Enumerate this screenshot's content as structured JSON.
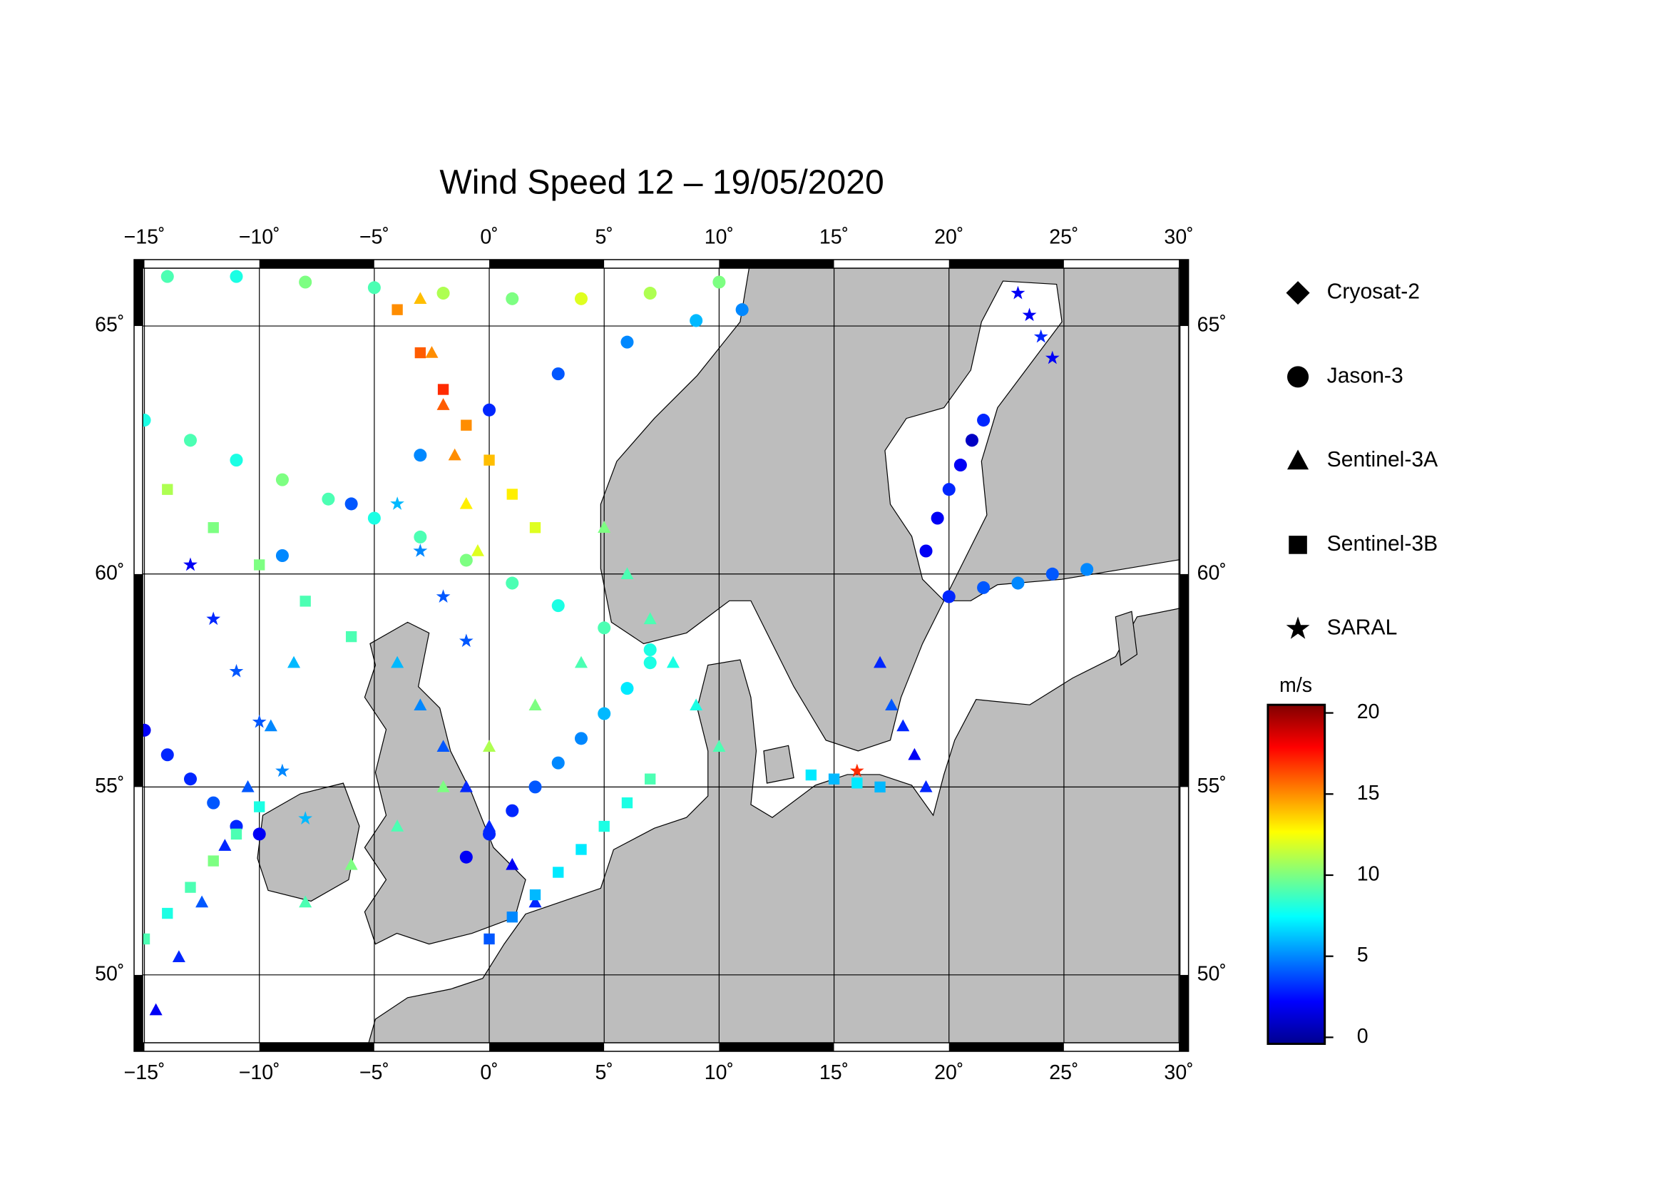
{
  "chart_data": {
    "type": "map",
    "title": "Wind Speed 12 – 19/05/2020",
    "xlim": [
      -15.45,
      30.42
    ],
    "ylim": [
      47.8,
      66.2
    ],
    "projection": "mercator",
    "grid": true,
    "xticks": [
      {
        "value": -15,
        "label": "−15˚"
      },
      {
        "value": -10,
        "label": "−10˚"
      },
      {
        "value": -5,
        "label": "−5˚"
      },
      {
        "value": 0,
        "label": "0˚"
      },
      {
        "value": 5,
        "label": "5˚"
      },
      {
        "value": 10,
        "label": "10˚"
      },
      {
        "value": 15,
        "label": "15˚"
      },
      {
        "value": 20,
        "label": "20˚"
      },
      {
        "value": 25,
        "label": "25˚"
      },
      {
        "value": 30,
        "label": "30˚"
      }
    ],
    "yticks": [
      {
        "value": 50,
        "label": "50˚"
      },
      {
        "value": 55,
        "label": "55˚"
      },
      {
        "value": 60,
        "label": "60˚"
      },
      {
        "value": 65,
        "label": "65˚"
      }
    ],
    "colorbar": {
      "label": "m/s",
      "colormap": "jet",
      "lim": [
        -0.4,
        20.5
      ],
      "ticks": [
        0,
        5,
        10,
        15,
        20
      ]
    },
    "series": [
      {
        "name": "Cryosat-2",
        "marker": "diamond",
        "tracks": []
      },
      {
        "name": "Jason-3",
        "marker": "circle",
        "tracks": [
          {
            "lon": [
              -14,
              -11,
              -8,
              -5,
              -2,
              1,
              4,
              7,
              10
            ],
            "lat": [
              65.9,
              65.9,
              65.8,
              65.7,
              65.6,
              65.5,
              65.5,
              65.6,
              65.8
            ],
            "values": [
              9,
              8,
              10,
              9,
              11,
              10,
              12,
              11,
              10
            ]
          },
          {
            "lon": [
              -15,
              -13,
              -11,
              -9,
              -7,
              -5,
              -3,
              -1,
              1,
              3,
              5,
              7
            ],
            "lat": [
              63.2,
              62.8,
              62.4,
              62.0,
              61.6,
              61.2,
              60.8,
              60.3,
              59.8,
              59.3,
              58.8,
              58.3
            ],
            "values": [
              8,
              9,
              8,
              10,
              9,
              8,
              9,
              10,
              9,
              8,
              9,
              8
            ]
          },
          {
            "lon": [
              -9,
              -6,
              -3,
              0,
              3,
              6,
              9,
              11
            ],
            "lat": [
              60.4,
              61.5,
              62.5,
              63.4,
              64.1,
              64.7,
              65.1,
              65.3
            ],
            "values": [
              5,
              4,
              5,
              3,
              4,
              5,
              6,
              5
            ]
          },
          {
            "lon": [
              -15,
              -14,
              -13,
              -12,
              -11,
              -10
            ],
            "lat": [
              56.4,
              55.8,
              55.2,
              54.6,
              54.0,
              53.8
            ],
            "values": [
              2,
              3,
              3,
              4,
              3,
              2
            ]
          },
          {
            "lon": [
              19,
              19.5,
              20,
              20.5,
              21,
              21.5
            ],
            "lat": [
              60.5,
              61.2,
              61.8,
              62.3,
              62.8,
              63.2
            ],
            "values": [
              2,
              2,
              3,
              2,
              1,
              3
            ]
          },
          {
            "lon": [
              20,
              21.5,
              23,
              24.5,
              26
            ],
            "lat": [
              59.5,
              59.7,
              59.8,
              60,
              60.1
            ],
            "values": [
              3,
              4,
              5,
              4,
              5
            ]
          },
          {
            "lon": [
              -1,
              0,
              1,
              2,
              3,
              4,
              5,
              6,
              7
            ],
            "lat": [
              53.2,
              53.8,
              54.4,
              55,
              55.6,
              56.2,
              56.8,
              57.4,
              58
            ],
            "values": [
              2,
              3,
              3,
              4,
              5,
              5,
              6,
              7,
              8
            ]
          }
        ]
      },
      {
        "name": "Sentinel-3A",
        "marker": "triangle",
        "tracks": [
          {
            "lon": [
              -14.5,
              -13.5,
              -12.5,
              -11.5,
              -10.5,
              -9.5,
              -8.5
            ],
            "lat": [
              49,
              50.5,
              52,
              53.5,
              55,
              56.5,
              58
            ],
            "values": [
              2,
              3,
              4,
              3,
              4,
              5,
              6
            ]
          },
          {
            "lon": [
              -3,
              -2.5,
              -2,
              -1.5,
              -1,
              -0.5
            ],
            "lat": [
              65.5,
              64.5,
              63.5,
              62.5,
              61.5,
              60.5
            ],
            "values": [
              14,
              15,
              16,
              15,
              13,
              12
            ]
          },
          {
            "lon": [
              -4,
              -3,
              -2,
              -1,
              0,
              1,
              2
            ],
            "lat": [
              58,
              57,
              56,
              55,
              54,
              53,
              52
            ],
            "values": [
              6,
              5,
              4,
              3,
              3,
              2,
              3
            ]
          },
          {
            "lon": [
              5,
              6,
              7,
              8,
              9,
              10
            ],
            "lat": [
              61,
              60,
              59,
              58,
              57,
              56
            ],
            "values": [
              10,
              9,
              9,
              8,
              8,
              9
            ]
          },
          {
            "lon": [
              17,
              17.5,
              18,
              18.5,
              19
            ],
            "lat": [
              58,
              57,
              56.5,
              55.8,
              55
            ],
            "values": [
              3,
              4,
              3,
              2,
              3
            ]
          },
          {
            "lon": [
              -8,
              -6,
              -4,
              -2,
              0,
              2,
              4
            ],
            "lat": [
              52,
              53,
              54,
              55,
              56,
              57,
              58
            ],
            "values": [
              9,
              10,
              9,
              10,
              11,
              10,
              9
            ]
          }
        ]
      },
      {
        "name": "Sentinel-3B",
        "marker": "square",
        "tracks": [
          {
            "lon": [
              -15,
              -14,
              -13,
              -12,
              -11,
              -10
            ],
            "lat": [
              51,
              51.7,
              52.4,
              53.1,
              53.8,
              54.5
            ],
            "values": [
              9,
              8,
              9,
              10,
              9,
              8
            ]
          },
          {
            "lon": [
              -4,
              -3,
              -2,
              -1,
              0,
              1,
              2
            ],
            "lat": [
              65.3,
              64.5,
              63.8,
              63.1,
              62.4,
              61.7,
              61
            ],
            "values": [
              15,
              16,
              17,
              15,
              14,
              13,
              12
            ]
          },
          {
            "lon": [
              0,
              1,
              2,
              3,
              4,
              5,
              6,
              7
            ],
            "lat": [
              51,
              51.6,
              52.2,
              52.8,
              53.4,
              54,
              54.6,
              55.2
            ],
            "values": [
              4,
              5,
              6,
              7,
              7,
              8,
              8,
              9
            ]
          },
          {
            "lon": [
              14,
              15,
              16,
              17
            ],
            "lat": [
              55.3,
              55.2,
              55.1,
              55
            ],
            "values": [
              7,
              6,
              7,
              6
            ]
          },
          {
            "lon": [
              -14,
              -12,
              -10,
              -8,
              -6
            ],
            "lat": [
              61.8,
              61,
              60.2,
              59.4,
              58.6
            ],
            "values": [
              11,
              10,
              10,
              9,
              9
            ]
          }
        ]
      },
      {
        "name": "SARAL",
        "marker": "star",
        "tracks": [
          {
            "lon": [
              -13,
              -12,
              -11,
              -10,
              -9,
              -8
            ],
            "lat": [
              60.2,
              59,
              57.8,
              56.6,
              55.4,
              54.2
            ],
            "values": [
              2,
              3,
              4,
              4,
              5,
              6
            ]
          },
          {
            "lon": [
              -4,
              -3,
              -2,
              -1
            ],
            "lat": [
              61.5,
              60.5,
              59.5,
              58.5
            ],
            "values": [
              6,
              5,
              4,
              4
            ]
          },
          {
            "lon": [
              23,
              23.5,
              24,
              24.5
            ],
            "lat": [
              65.6,
              65.2,
              64.8,
              64.4
            ],
            "values": [
              2,
              2,
              3,
              2
            ]
          },
          {
            "lon": [
              16
            ],
            "lat": [
              55.4
            ],
            "values": [
              17
            ]
          }
        ]
      }
    ]
  }
}
